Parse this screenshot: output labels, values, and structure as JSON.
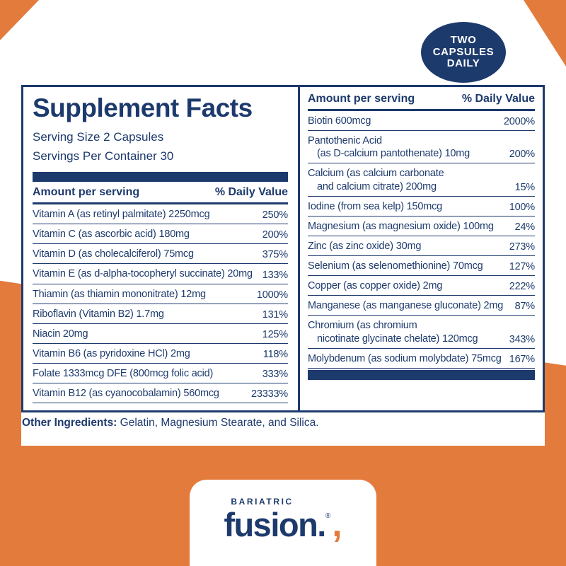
{
  "colors": {
    "orange": "#e37b3d",
    "navy": "#1d3a6d"
  },
  "badge": {
    "lines": [
      "TWO",
      "CAPSULES",
      "DAILY"
    ]
  },
  "panel": {
    "title": "Supplement Facts",
    "serving_size": "Serving Size 2 Capsules",
    "servings_per_container": "Servings Per Container 30",
    "columns": {
      "amount": "Amount per serving",
      "daily_value": "% Daily Value"
    },
    "left_rows": [
      {
        "name": "Vitamin A (as retinyl palmitate) 2250mcg",
        "dv": "250%"
      },
      {
        "name": "Vitamin C (as ascorbic acid) 180mg",
        "dv": "200%"
      },
      {
        "name": "Vitamin D (as cholecalciferol) 75mcg",
        "dv": "375%"
      },
      {
        "name": "Vitamin E (as d-alpha-tocopheryl succinate) 20mg",
        "dv": "133%"
      },
      {
        "name": "Thiamin (as thiamin mononitrate) 12mg",
        "dv": "1000%"
      },
      {
        "name": "Riboflavin (Vitamin B2) 1.7mg",
        "dv": "131%"
      },
      {
        "name": "Niacin 20mg",
        "dv": "125%"
      },
      {
        "name": "Vitamin B6 (as pyridoxine HCl) 2mg",
        "dv": "118%"
      },
      {
        "name": "Folate 1333mcg DFE (800mcg folic acid)",
        "dv": "333%"
      },
      {
        "name": "Vitamin B12 (as cyanocobalamin) 560mcg",
        "dv": "23333%"
      }
    ],
    "right_rows": [
      {
        "name": "Biotin 600mcg",
        "dv": "2000%"
      },
      {
        "name": "Pantothenic Acid",
        "name2": "(as D-calcium pantothenate) 10mg",
        "dv": "200%"
      },
      {
        "name": "Calcium (as calcium carbonate",
        "name2": "and calcium citrate) 200mg",
        "dv": "15%"
      },
      {
        "name": "Iodine (from sea kelp) 150mcg",
        "dv": "100%"
      },
      {
        "name": "Magnesium (as magnesium oxide) 100mg",
        "dv": "24%"
      },
      {
        "name": "Zinc (as zinc oxide) 30mg",
        "dv": "273%"
      },
      {
        "name": "Selenium (as selenomethionine) 70mcg",
        "dv": "127%"
      },
      {
        "name": "Copper (as copper oxide) 2mg",
        "dv": "222%"
      },
      {
        "name": "Manganese (as manganese gluconate) 2mg",
        "dv": "87%"
      },
      {
        "name": "Chromium (as chromium",
        "name2": "nicotinate glycinate chelate) 120mcg",
        "dv": "343%"
      },
      {
        "name": "Molybdenum (as sodium molybdate) 75mcg",
        "dv": "167%"
      }
    ]
  },
  "other_ingredients": {
    "label": "Other Ingredients:",
    "text": "Gelatin, Magnesium Stearate, and Silica."
  },
  "logo": {
    "brand_top": "BARIATRIC",
    "brand_main": "fusion.",
    "registered": "®"
  }
}
